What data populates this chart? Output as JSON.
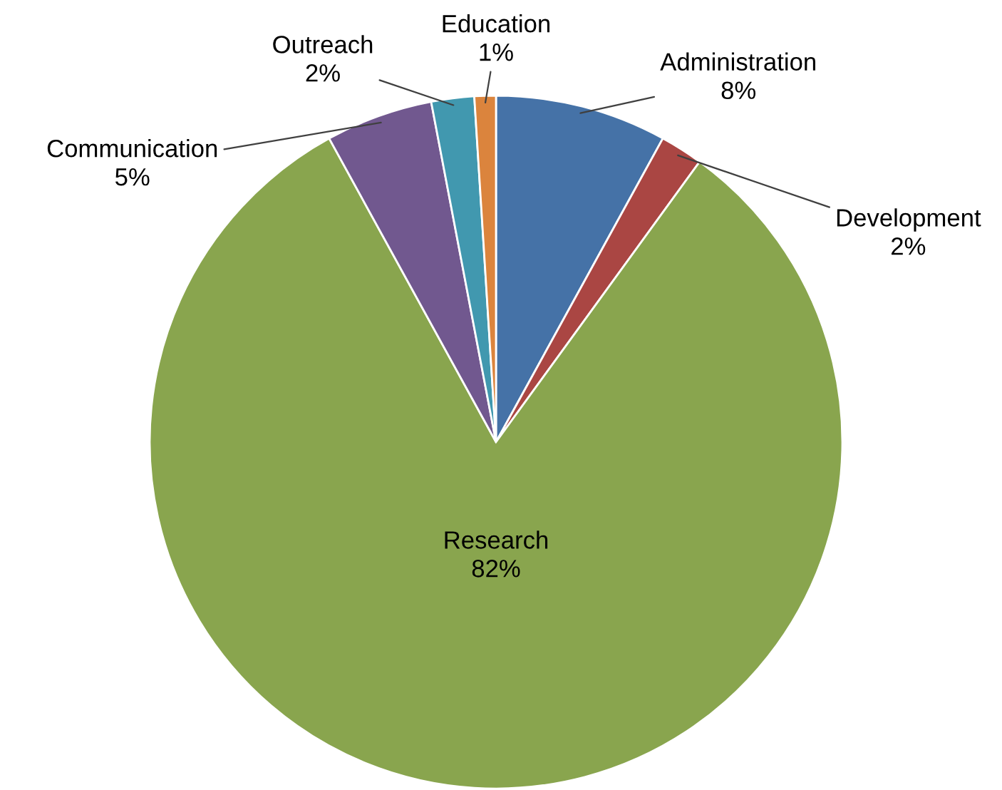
{
  "chart_data": {
    "type": "pie",
    "categories": [
      "Administration",
      "Development",
      "Research",
      "Communication",
      "Outreach",
      "Education"
    ],
    "values": [
      8,
      2,
      82,
      5,
      2,
      1
    ],
    "colors": [
      "#4572a7",
      "#aa4643",
      "#89a54e",
      "#71588f",
      "#4198af",
      "#db843d"
    ],
    "value_labels": [
      "8%",
      "2%",
      "82%",
      "5%",
      "2%",
      "1%"
    ],
    "legend": false
  }
}
